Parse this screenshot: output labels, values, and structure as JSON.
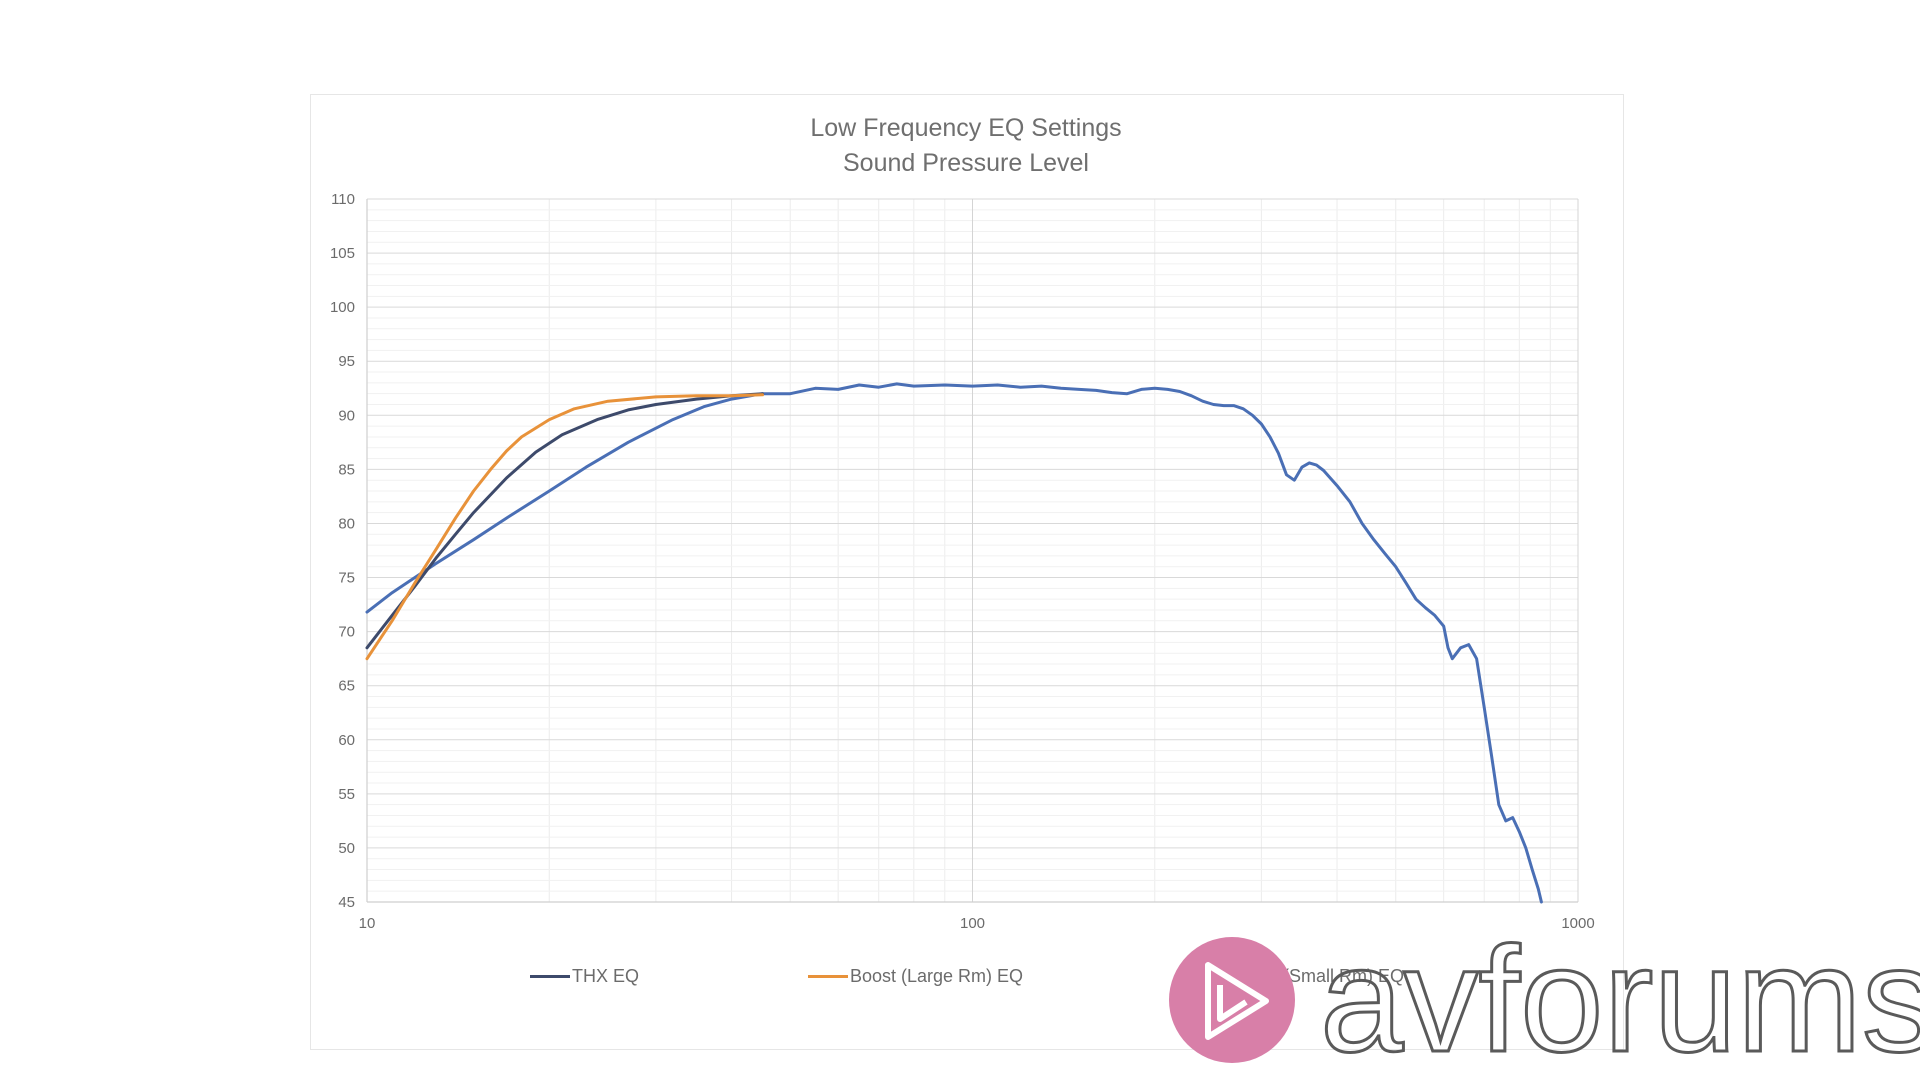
{
  "chart_data": {
    "type": "line",
    "title": "Low Frequency EQ Settings",
    "subtitle": "Sound Pressure Level",
    "xlabel": "",
    "ylabel": "",
    "x_scale": "log",
    "xlim": [
      10,
      1000
    ],
    "ylim": [
      45,
      110
    ],
    "x_ticks": [
      "10",
      "100",
      "1000"
    ],
    "y_ticks": [
      "45",
      "50",
      "55",
      "60",
      "65",
      "70",
      "75",
      "80",
      "85",
      "90",
      "95",
      "100",
      "105",
      "110"
    ],
    "grid": true,
    "legend_position": "bottom",
    "series": [
      {
        "name": "THX EQ",
        "color": "#3d4a6b",
        "points": [
          [
            10,
            68.5
          ],
          [
            11,
            71.5
          ],
          [
            12,
            74.2
          ],
          [
            13,
            76.8
          ],
          [
            14,
            79
          ],
          [
            15,
            81
          ],
          [
            17,
            84.2
          ],
          [
            19,
            86.6
          ],
          [
            21,
            88.2
          ],
          [
            24,
            89.6
          ],
          [
            27,
            90.5
          ],
          [
            30,
            91
          ],
          [
            35,
            91.5
          ],
          [
            40,
            91.8
          ],
          [
            45,
            92
          ]
        ]
      },
      {
        "name": "Boost (Large Rm) EQ",
        "color": "#e8923a",
        "points": [
          [
            10,
            67.5
          ],
          [
            11,
            71
          ],
          [
            12,
            74.5
          ],
          [
            13,
            77.6
          ],
          [
            14,
            80.5
          ],
          [
            15,
            83
          ],
          [
            16,
            85
          ],
          [
            17,
            86.7
          ],
          [
            18,
            88
          ],
          [
            20,
            89.6
          ],
          [
            22,
            90.6
          ],
          [
            25,
            91.3
          ],
          [
            30,
            91.7
          ],
          [
            35,
            91.8
          ],
          [
            40,
            91.8
          ],
          [
            45,
            91.9
          ]
        ]
      },
      {
        "name": "Cut (Small Rm) EQ",
        "color": "#4a6fb5",
        "points": [
          [
            10,
            71.8
          ],
          [
            11,
            73.6
          ],
          [
            12,
            75
          ],
          [
            13,
            76.3
          ],
          [
            15,
            78.5
          ],
          [
            17,
            80.5
          ],
          [
            20,
            83
          ],
          [
            23,
            85.2
          ],
          [
            27,
            87.5
          ],
          [
            32,
            89.6
          ],
          [
            36,
            90.8
          ],
          [
            40,
            91.5
          ],
          [
            45,
            92
          ],
          [
            50,
            92
          ],
          [
            55,
            92.5
          ],
          [
            60,
            92.4
          ],
          [
            65,
            92.8
          ],
          [
            70,
            92.6
          ],
          [
            75,
            92.9
          ],
          [
            80,
            92.7
          ],
          [
            90,
            92.8
          ],
          [
            100,
            92.7
          ],
          [
            110,
            92.8
          ],
          [
            120,
            92.6
          ],
          [
            130,
            92.7
          ],
          [
            140,
            92.5
          ],
          [
            150,
            92.4
          ],
          [
            160,
            92.3
          ],
          [
            170,
            92.1
          ],
          [
            180,
            92
          ],
          [
            190,
            92.4
          ],
          [
            200,
            92.5
          ],
          [
            210,
            92.4
          ],
          [
            220,
            92.2
          ],
          [
            230,
            91.8
          ],
          [
            240,
            91.3
          ],
          [
            250,
            91
          ],
          [
            260,
            90.9
          ],
          [
            270,
            90.9
          ],
          [
            280,
            90.6
          ],
          [
            290,
            90
          ],
          [
            300,
            89.2
          ],
          [
            310,
            88
          ],
          [
            320,
            86.5
          ],
          [
            330,
            84.5
          ],
          [
            340,
            84
          ],
          [
            350,
            85.2
          ],
          [
            360,
            85.6
          ],
          [
            370,
            85.4
          ],
          [
            380,
            84.9
          ],
          [
            400,
            83.5
          ],
          [
            420,
            82
          ],
          [
            440,
            80
          ],
          [
            460,
            78.5
          ],
          [
            480,
            77.2
          ],
          [
            500,
            76
          ],
          [
            520,
            74.5
          ],
          [
            540,
            73
          ],
          [
            560,
            72.2
          ],
          [
            580,
            71.5
          ],
          [
            600,
            70.5
          ],
          [
            610,
            68.5
          ],
          [
            620,
            67.5
          ],
          [
            640,
            68.5
          ],
          [
            660,
            68.8
          ],
          [
            680,
            67.5
          ],
          [
            700,
            63
          ],
          [
            720,
            58.5
          ],
          [
            740,
            54
          ],
          [
            760,
            52.5
          ],
          [
            780,
            52.8
          ],
          [
            800,
            51.5
          ],
          [
            820,
            50
          ],
          [
            840,
            48
          ],
          [
            860,
            46.2
          ],
          [
            870,
            45
          ]
        ]
      }
    ]
  },
  "watermark": {
    "text": "avforums",
    "badge_color": "#d87fa8"
  }
}
